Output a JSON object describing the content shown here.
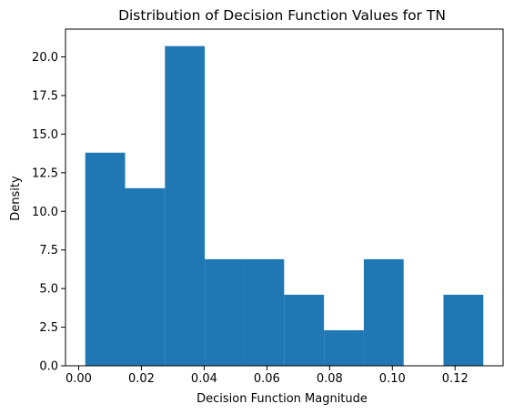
{
  "chart_data": {
    "type": "histogram",
    "title": "Distribution of Decision Function Values for TN",
    "xlabel": "Decision Function Magnitude",
    "ylabel": "Density",
    "bar_color": "#1f77b4",
    "xlim": [
      -0.0042,
      0.1353
    ],
    "ylim": [
      0.0,
      21.8
    ],
    "bins": [
      {
        "x0": 0.0021,
        "x1": 0.0148,
        "value": 13.8
      },
      {
        "x0": 0.0148,
        "x1": 0.0275,
        "value": 11.5
      },
      {
        "x0": 0.0275,
        "x1": 0.0402,
        "value": 20.7
      },
      {
        "x0": 0.0402,
        "x1": 0.0528,
        "value": 6.9
      },
      {
        "x0": 0.0528,
        "x1": 0.0655,
        "value": 6.9
      },
      {
        "x0": 0.0655,
        "x1": 0.0782,
        "value": 4.6
      },
      {
        "x0": 0.0782,
        "x1": 0.0909,
        "value": 2.3
      },
      {
        "x0": 0.0909,
        "x1": 0.1036,
        "value": 6.9
      },
      {
        "x0": 0.1036,
        "x1": 0.1163,
        "value": 0.0
      },
      {
        "x0": 0.1163,
        "x1": 0.129,
        "value": 4.6
      }
    ],
    "xticks": [
      {
        "value": 0.0,
        "label": "0.00"
      },
      {
        "value": 0.02,
        "label": "0.02"
      },
      {
        "value": 0.04,
        "label": "0.04"
      },
      {
        "value": 0.06,
        "label": "0.06"
      },
      {
        "value": 0.08,
        "label": "0.08"
      },
      {
        "value": 0.1,
        "label": "0.10"
      },
      {
        "value": 0.12,
        "label": "0.12"
      }
    ],
    "yticks": [
      {
        "value": 0.0,
        "label": "0.0"
      },
      {
        "value": 2.5,
        "label": "2.5"
      },
      {
        "value": 5.0,
        "label": "5.0"
      },
      {
        "value": 7.5,
        "label": "7.5"
      },
      {
        "value": 10.0,
        "label": "10.0"
      },
      {
        "value": 12.5,
        "label": "12.5"
      },
      {
        "value": 15.0,
        "label": "15.0"
      },
      {
        "value": 17.5,
        "label": "17.5"
      },
      {
        "value": 20.0,
        "label": "20.0"
      }
    ]
  }
}
